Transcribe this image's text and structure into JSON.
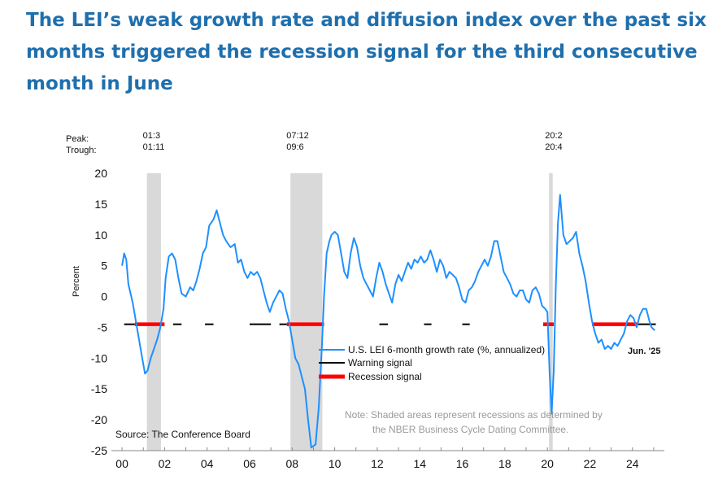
{
  "title": "The LEI’s weak growth rate and diffusion index over the past six months triggered the recession signal for the third consecutive month in June",
  "colors": {
    "title": "#1f6fad",
    "lei_line": "#1e90ff",
    "warning": "#000000",
    "recession": "#ff0000",
    "shading": "#d9d9d9",
    "note": "#9a9a9a"
  },
  "chart_data": {
    "type": "line",
    "ylabel": "Percent",
    "ylim": [
      -25,
      20
    ],
    "xlim": [
      1999.5,
      2025.5
    ],
    "y_ticks": [
      20,
      15,
      10,
      5,
      0,
      -5,
      -10,
      -15,
      -20,
      -25
    ],
    "x_ticks": [
      {
        "year": 2000,
        "label": "00"
      },
      {
        "year": 2002,
        "label": "02"
      },
      {
        "year": 2004,
        "label": "04"
      },
      {
        "year": 2006,
        "label": "06"
      },
      {
        "year": 2008,
        "label": "08"
      },
      {
        "year": 2010,
        "label": "10"
      },
      {
        "year": 2012,
        "label": "12"
      },
      {
        "year": 2014,
        "label": "14"
      },
      {
        "year": 2016,
        "label": "16"
      },
      {
        "year": 2018,
        "label": "18"
      },
      {
        "year": 2020,
        "label": "20"
      },
      {
        "year": 2022,
        "label": "22"
      },
      {
        "year": 2024,
        "label": "24"
      }
    ],
    "peak_label": "Peak:",
    "trough_label": "Trough:",
    "recessions": [
      {
        "start": 2001.17,
        "end": 2001.83,
        "peak": "01:3",
        "trough": "01:11"
      },
      {
        "start": 2007.92,
        "end": 2009.42,
        "peak": "07:12",
        "trough": "09:6"
      },
      {
        "start": 2020.08,
        "end": 2020.25,
        "peak": "20:2",
        "trough": "20:4"
      }
    ],
    "signal_level": -4.5,
    "warning_segments": [
      [
        2000.1,
        2000.6
      ],
      [
        2002.4,
        2002.8
      ],
      [
        2003.9,
        2004.3
      ],
      [
        2006.0,
        2007.0
      ],
      [
        2007.4,
        2007.75
      ],
      [
        2012.1,
        2012.5
      ],
      [
        2014.2,
        2014.55
      ],
      [
        2016.0,
        2016.35
      ],
      [
        2023.0,
        2023.3
      ],
      [
        2024.25,
        2025.1
      ]
    ],
    "recession_segments": [
      [
        2000.6,
        2002.0
      ],
      [
        2007.75,
        2009.5
      ],
      [
        2019.8,
        2020.3
      ],
      [
        2022.1,
        2024.25
      ]
    ],
    "series": [
      {
        "name": "U.S. LEI 6-month growth rate (%, annualized)",
        "points": [
          [
            2000.0,
            5.0
          ],
          [
            2000.1,
            7.0
          ],
          [
            2000.2,
            6.0
          ],
          [
            2000.3,
            2.0
          ],
          [
            2000.5,
            -1.0
          ],
          [
            2000.65,
            -4.0
          ],
          [
            2000.8,
            -7.0
          ],
          [
            2000.95,
            -10.0
          ],
          [
            2001.08,
            -12.5
          ],
          [
            2001.2,
            -12.0
          ],
          [
            2001.35,
            -10.0
          ],
          [
            2001.5,
            -8.5
          ],
          [
            2001.65,
            -7.0
          ],
          [
            2001.8,
            -5.0
          ],
          [
            2001.95,
            -2.0
          ],
          [
            2002.05,
            3.0
          ],
          [
            2002.2,
            6.5
          ],
          [
            2002.35,
            7.0
          ],
          [
            2002.5,
            6.0
          ],
          [
            2002.65,
            3.0
          ],
          [
            2002.8,
            0.5
          ],
          [
            2003.0,
            0.0
          ],
          [
            2003.2,
            1.5
          ],
          [
            2003.35,
            1.0
          ],
          [
            2003.5,
            2.5
          ],
          [
            2003.65,
            4.5
          ],
          [
            2003.8,
            7.0
          ],
          [
            2003.95,
            8.0
          ],
          [
            2004.1,
            11.5
          ],
          [
            2004.3,
            12.5
          ],
          [
            2004.45,
            14.0
          ],
          [
            2004.6,
            12.0
          ],
          [
            2004.75,
            10.0
          ],
          [
            2004.9,
            9.0
          ],
          [
            2005.1,
            8.0
          ],
          [
            2005.3,
            8.5
          ],
          [
            2005.45,
            5.5
          ],
          [
            2005.6,
            6.0
          ],
          [
            2005.75,
            4.0
          ],
          [
            2005.9,
            3.0
          ],
          [
            2006.05,
            4.0
          ],
          [
            2006.2,
            3.5
          ],
          [
            2006.35,
            4.0
          ],
          [
            2006.5,
            3.0
          ],
          [
            2006.65,
            1.0
          ],
          [
            2006.8,
            -1.0
          ],
          [
            2006.95,
            -2.5
          ],
          [
            2007.1,
            -1.0
          ],
          [
            2007.25,
            0.0
          ],
          [
            2007.4,
            1.0
          ],
          [
            2007.55,
            0.5
          ],
          [
            2007.7,
            -2.0
          ],
          [
            2007.85,
            -4.0
          ],
          [
            2008.0,
            -7.0
          ],
          [
            2008.15,
            -10.0
          ],
          [
            2008.3,
            -11.0
          ],
          [
            2008.45,
            -13.0
          ],
          [
            2008.6,
            -15.0
          ],
          [
            2008.75,
            -20.0
          ],
          [
            2008.9,
            -24.5
          ],
          [
            2009.1,
            -24.0
          ],
          [
            2009.25,
            -18.0
          ],
          [
            2009.4,
            -8.0
          ],
          [
            2009.5,
            0.0
          ],
          [
            2009.62,
            7.0
          ],
          [
            2009.75,
            9.0
          ],
          [
            2009.85,
            10.0
          ],
          [
            2010.0,
            10.5
          ],
          [
            2010.15,
            10.0
          ],
          [
            2010.3,
            7.0
          ],
          [
            2010.45,
            4.0
          ],
          [
            2010.6,
            3.0
          ],
          [
            2010.75,
            7.0
          ],
          [
            2010.9,
            9.5
          ],
          [
            2011.05,
            8.0
          ],
          [
            2011.2,
            5.0
          ],
          [
            2011.35,
            3.0
          ],
          [
            2011.5,
            2.0
          ],
          [
            2011.65,
            1.0
          ],
          [
            2011.8,
            0.0
          ],
          [
            2011.95,
            3.0
          ],
          [
            2012.1,
            5.5
          ],
          [
            2012.25,
            4.0
          ],
          [
            2012.4,
            2.0
          ],
          [
            2012.55,
            0.5
          ],
          [
            2012.7,
            -1.0
          ],
          [
            2012.85,
            2.0
          ],
          [
            2013.0,
            3.5
          ],
          [
            2013.15,
            2.5
          ],
          [
            2013.3,
            4.0
          ],
          [
            2013.45,
            5.5
          ],
          [
            2013.6,
            4.5
          ],
          [
            2013.75,
            6.0
          ],
          [
            2013.9,
            5.5
          ],
          [
            2014.05,
            6.5
          ],
          [
            2014.2,
            5.5
          ],
          [
            2014.35,
            6.0
          ],
          [
            2014.5,
            7.5
          ],
          [
            2014.65,
            6.0
          ],
          [
            2014.8,
            4.0
          ],
          [
            2014.95,
            6.0
          ],
          [
            2015.1,
            5.0
          ],
          [
            2015.25,
            3.0
          ],
          [
            2015.4,
            4.0
          ],
          [
            2015.55,
            3.5
          ],
          [
            2015.7,
            3.0
          ],
          [
            2015.85,
            1.5
          ],
          [
            2016.0,
            -0.5
          ],
          [
            2016.15,
            -1.0
          ],
          [
            2016.3,
            1.0
          ],
          [
            2016.45,
            1.5
          ],
          [
            2016.6,
            2.5
          ],
          [
            2016.75,
            4.0
          ],
          [
            2016.9,
            5.0
          ],
          [
            2017.05,
            6.0
          ],
          [
            2017.2,
            5.0
          ],
          [
            2017.35,
            6.5
          ],
          [
            2017.5,
            9.0
          ],
          [
            2017.65,
            9.0
          ],
          [
            2017.8,
            6.5
          ],
          [
            2017.95,
            4.0
          ],
          [
            2018.1,
            3.0
          ],
          [
            2018.25,
            2.0
          ],
          [
            2018.4,
            0.5
          ],
          [
            2018.55,
            0.0
          ],
          [
            2018.7,
            1.0
          ],
          [
            2018.85,
            1.0
          ],
          [
            2019.0,
            -0.5
          ],
          [
            2019.15,
            -1.0
          ],
          [
            2019.3,
            1.0
          ],
          [
            2019.45,
            1.5
          ],
          [
            2019.6,
            0.5
          ],
          [
            2019.75,
            -1.5
          ],
          [
            2019.9,
            -2.0
          ],
          [
            2020.0,
            -2.5
          ],
          [
            2020.1,
            -12.0
          ],
          [
            2020.2,
            -19.0
          ],
          [
            2020.3,
            -12.0
          ],
          [
            2020.4,
            2.0
          ],
          [
            2020.5,
            12.0
          ],
          [
            2020.6,
            16.5
          ],
          [
            2020.75,
            10.0
          ],
          [
            2020.9,
            8.5
          ],
          [
            2021.05,
            9.0
          ],
          [
            2021.2,
            9.5
          ],
          [
            2021.35,
            10.5
          ],
          [
            2021.5,
            7.0
          ],
          [
            2021.65,
            5.0
          ],
          [
            2021.8,
            2.5
          ],
          [
            2021.95,
            -1.0
          ],
          [
            2022.1,
            -4.0
          ],
          [
            2022.25,
            -6.0
          ],
          [
            2022.4,
            -7.5
          ],
          [
            2022.55,
            -7.0
          ],
          [
            2022.7,
            -8.5
          ],
          [
            2022.85,
            -8.0
          ],
          [
            2023.0,
            -8.5
          ],
          [
            2023.15,
            -7.5
          ],
          [
            2023.3,
            -8.0
          ],
          [
            2023.45,
            -7.0
          ],
          [
            2023.6,
            -6.0
          ],
          [
            2023.75,
            -4.0
          ],
          [
            2023.9,
            -3.0
          ],
          [
            2024.05,
            -3.5
          ],
          [
            2024.2,
            -5.0
          ],
          [
            2024.35,
            -3.0
          ],
          [
            2024.5,
            -2.0
          ],
          [
            2024.65,
            -2.0
          ],
          [
            2024.8,
            -4.0
          ],
          [
            2024.9,
            -5.0
          ],
          [
            2025.05,
            -5.5
          ]
        ]
      },
      {
        "name": "Warning signal"
      },
      {
        "name": "Recession signal"
      }
    ],
    "end_label": "Jun. '25",
    "source": "Source: The Conference Board",
    "note_line1": "Note: Shaded areas represent recessions as determined by",
    "note_line2": "the NBER Business Cycle Dating Committee."
  }
}
